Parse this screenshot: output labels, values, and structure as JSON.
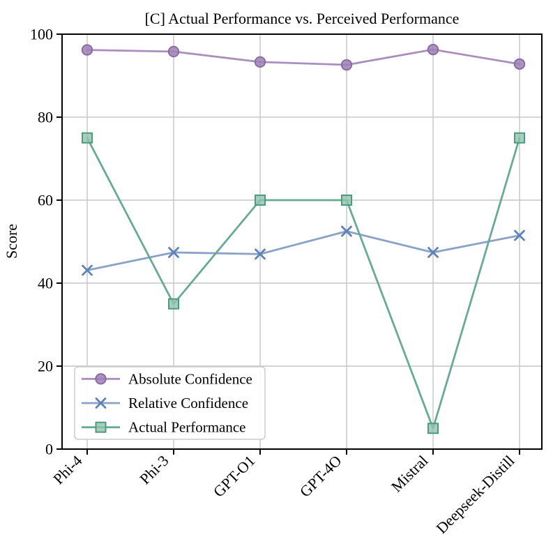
{
  "figure": {
    "background": "#ffffff"
  },
  "chart_data": {
    "type": "line",
    "title": "[C] Actual Performance vs. Perceived Performance",
    "xlabel": "",
    "ylabel": "Score",
    "ylim": [
      0,
      100
    ],
    "yticks": [
      0,
      20,
      40,
      60,
      80,
      100
    ],
    "grid": true,
    "grid_color": "#c6c6c6",
    "axis_color": "#000000",
    "legend_position": "lower-left",
    "categories": [
      "Phi-4",
      "Phi-3",
      "GPT-O1",
      "GPT-4O",
      "Mistral",
      "Deepseek-Distill"
    ],
    "series": [
      {
        "name": "Absolute Confidence",
        "marker": "circle",
        "line_color": "#a98ebf",
        "marker_fill": "#9d80b5",
        "marker_edge": "#8a6ba2",
        "values": [
          96.2,
          95.8,
          93.3,
          92.6,
          96.3,
          92.8
        ]
      },
      {
        "name": "Relative Confidence",
        "marker": "x",
        "line_color": "#89a2c8",
        "marker_fill": "#5d83b8",
        "marker_edge": "#5d83b8",
        "values": [
          43.1,
          47.4,
          47.0,
          52.5,
          47.4,
          51.5
        ]
      },
      {
        "name": "Actual Performance",
        "marker": "square",
        "line_color": "#68ab92",
        "marker_fill": "#8fc3ae",
        "marker_edge": "#4f9a7c",
        "values": [
          75,
          35,
          60,
          60,
          5,
          75
        ]
      }
    ]
  }
}
